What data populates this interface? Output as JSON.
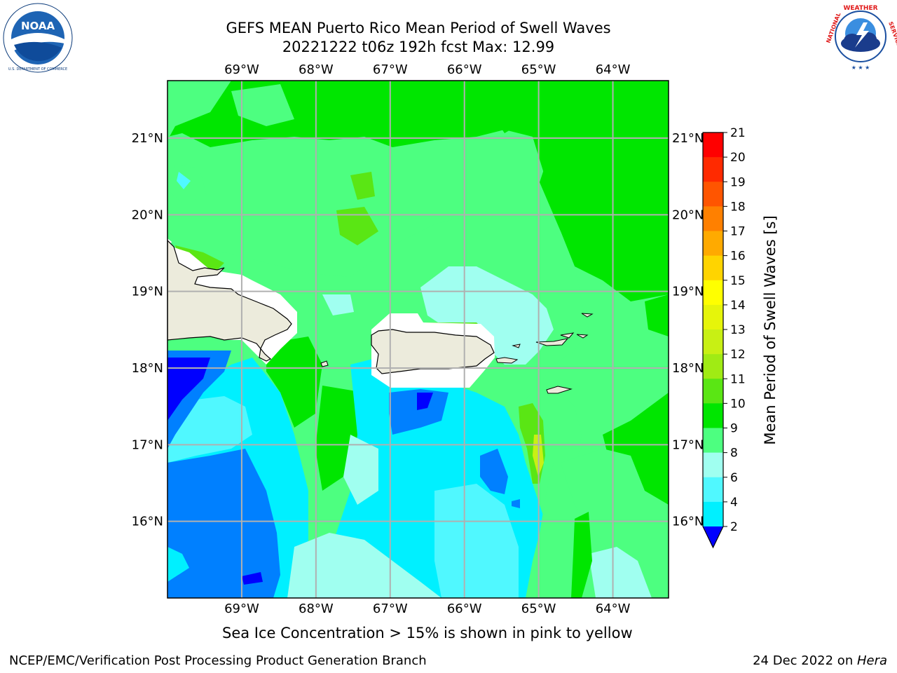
{
  "header": {
    "title_line1": "GEFS MEAN Puerto Rico Mean Period of Swell Waves",
    "title_line2": "20221222 t06z 192h fcst   Max: 12.99"
  },
  "logos": {
    "left": {
      "name": "NOAA",
      "ring_text": "NATIONAL OCEANIC AND ATMOSPHERIC ADMINISTRATION",
      "bottom_text": "U.S. DEPARTMENT OF COMMERCE"
    },
    "right": {
      "ring_text": "NATIONAL WEATHER SERVICE"
    }
  },
  "map": {
    "lon_labels": [
      "69°W",
      "68°W",
      "67°W",
      "66°W",
      "65°W",
      "64°W"
    ],
    "lat_labels": [
      "21°N",
      "20°N",
      "19°N",
      "18°N",
      "17°N",
      "16°N"
    ],
    "lon_extent": [
      -70.0,
      -63.25
    ],
    "lat_extent": [
      15.0,
      21.75
    ],
    "grid": true
  },
  "colorbar": {
    "label": "Mean Period of Swell Waves [s]",
    "ticks": [
      "21",
      "20",
      "19",
      "18",
      "17",
      "16",
      "15",
      "14",
      "13",
      "12",
      "11",
      "10",
      "9",
      "8",
      "6",
      "4",
      "2"
    ],
    "colors": [
      "#ff0000",
      "#ff2a00",
      "#ff5500",
      "#ff8000",
      "#ffaa00",
      "#ffd400",
      "#ffff00",
      "#e6f50a",
      "#c8f014",
      "#a0eb14",
      "#5ae614",
      "#00e600",
      "#4dff80",
      "#a0fff0",
      "#50f8ff",
      "#00f0ff",
      "#0080ff"
    ],
    "under_color": "#0000ff"
  },
  "colors": {
    "land": "#ecebdc",
    "dominant_green": "#00e600",
    "light_green": "#4dff80",
    "cyan": "#00f0ff",
    "light_cyan": "#a0fff0",
    "blue": "#0080ff",
    "deep_blue": "#0000ff"
  },
  "caption": "Sea Ice Concentration > 15% is shown in pink to yellow",
  "footer": {
    "left": "NCEP/EMC/Verification Post Processing Product Generation Branch",
    "right_prefix": "24 Dec 2022 on ",
    "right_host": "Hera"
  }
}
